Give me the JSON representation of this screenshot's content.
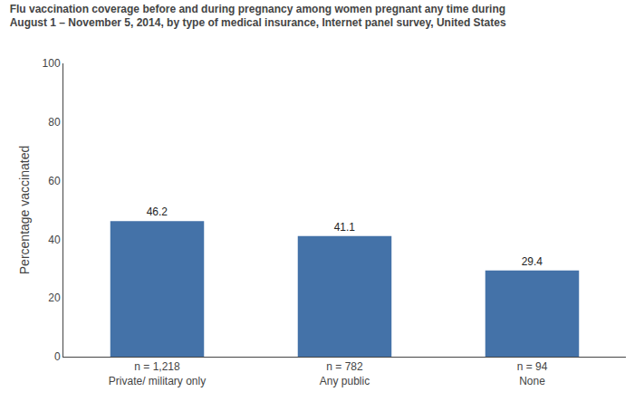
{
  "chart_data": {
    "type": "bar",
    "title": "Flu vaccination coverage before and during pregnancy among women pregnant any time during\nAugust 1 – November 5, 2014, by type of medical insurance, Internet panel survey, United States",
    "categories": [
      "Private/ military only",
      "Any public",
      "None"
    ],
    "annotations": [
      "n = 1,218",
      "n = 782",
      "n = 94"
    ],
    "values": [
      46.2,
      41.1,
      29.4
    ],
    "color": "#4472a8",
    "ylabel": "Percentage vaccinated",
    "ylim": [
      0,
      100
    ],
    "yticks": [
      0,
      20,
      40,
      60,
      80,
      100
    ],
    "data_labels": true,
    "grid": false
  }
}
